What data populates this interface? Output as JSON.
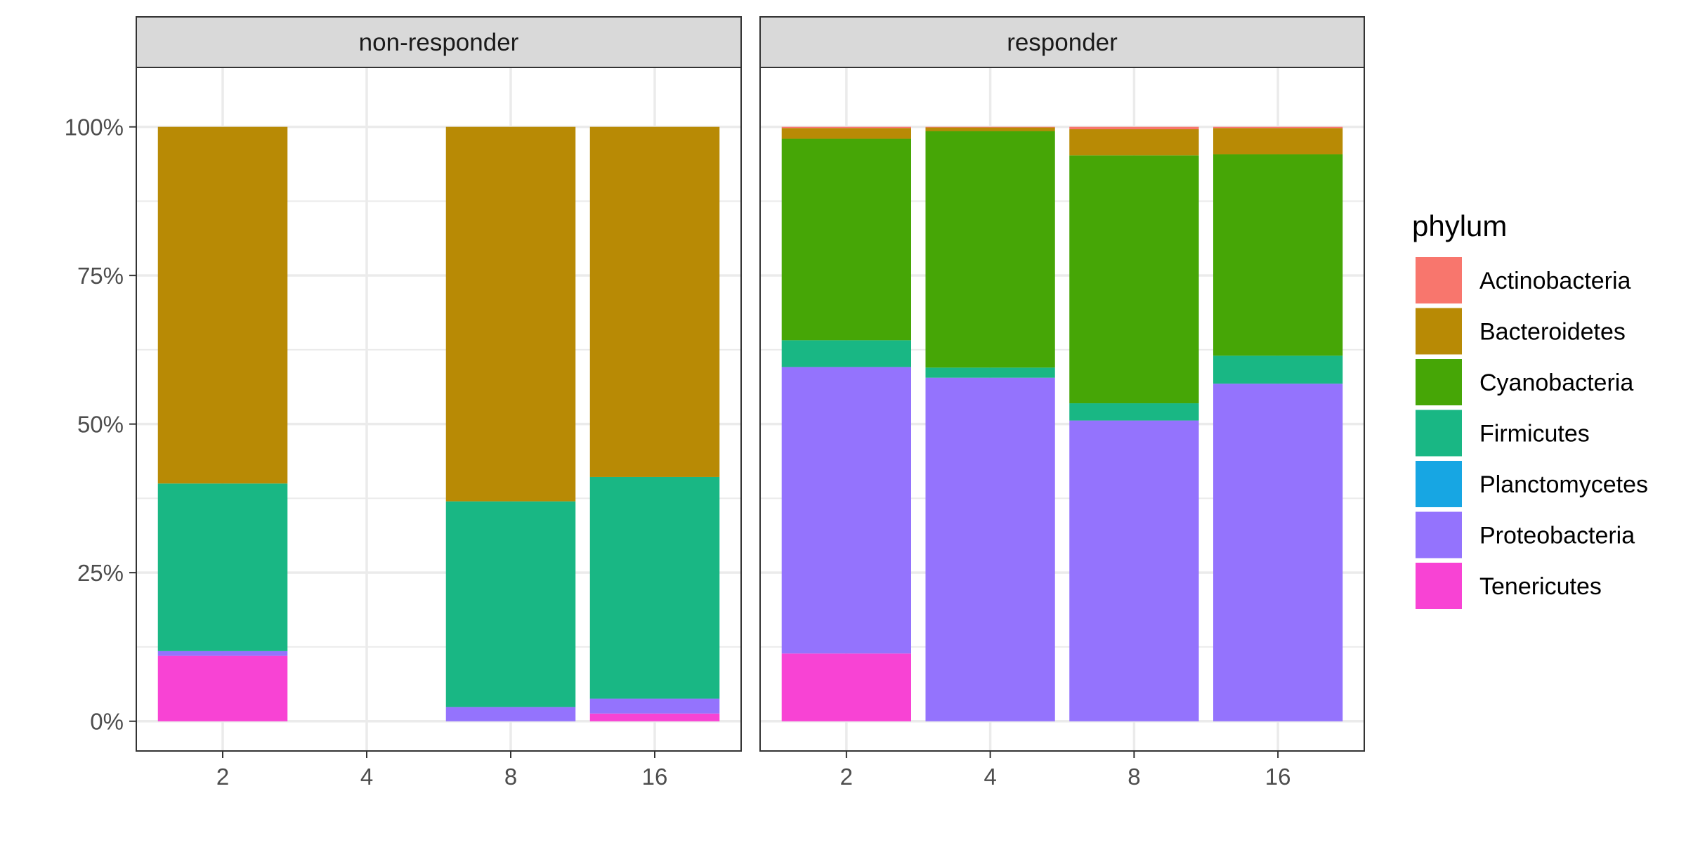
{
  "chart_data": {
    "type": "bar",
    "stacked": true,
    "facets": [
      {
        "label": "non-responder",
        "categories": [
          "2",
          "4",
          "8",
          "16"
        ],
        "series": [
          {
            "name": "Tenericutes",
            "values": [
              11.0,
              0,
              0,
              1.3
            ]
          },
          {
            "name": "Proteobacteria",
            "values": [
              0.8,
              0,
              2.4,
              2.5
            ]
          },
          {
            "name": "Planctomycetes",
            "values": [
              0,
              0,
              0,
              0
            ]
          },
          {
            "name": "Firmicutes",
            "values": [
              28.2,
              0,
              34.6,
              37.3
            ]
          },
          {
            "name": "Cyanobacteria",
            "values": [
              0,
              0,
              0,
              0
            ]
          },
          {
            "name": "Bacteroidetes",
            "values": [
              60.0,
              0,
              63.0,
              58.9
            ]
          },
          {
            "name": "Actinobacteria",
            "values": [
              0,
              0,
              0,
              0
            ]
          }
        ]
      },
      {
        "label": "responder",
        "categories": [
          "2",
          "4",
          "8",
          "16"
        ],
        "series": [
          {
            "name": "Tenericutes",
            "values": [
              11.4,
              0,
              0,
              0
            ]
          },
          {
            "name": "Proteobacteria",
            "values": [
              48.2,
              57.8,
              50.6,
              56.8
            ]
          },
          {
            "name": "Planctomycetes",
            "values": [
              0,
              0,
              0,
              0
            ]
          },
          {
            "name": "Firmicutes",
            "values": [
              4.5,
              1.7,
              2.9,
              4.7
            ]
          },
          {
            "name": "Cyanobacteria",
            "values": [
              33.9,
              39.8,
              41.7,
              33.9
            ]
          },
          {
            "name": "Bacteroidetes",
            "values": [
              1.8,
              0.6,
              4.4,
              4.4
            ]
          },
          {
            "name": "Actinobacteria",
            "values": [
              0.2,
              0.1,
              0.4,
              0.2
            ]
          }
        ]
      }
    ],
    "y_tick_labels": [
      "0%",
      "25%",
      "50%",
      "75%",
      "100%"
    ],
    "y_ticks": [
      0,
      25,
      50,
      75,
      100
    ],
    "ylim": [
      -5,
      110
    ],
    "xlabel": "",
    "ylabel": "",
    "grid": true,
    "legend": {
      "title": "phylum",
      "placement": "right",
      "entries": [
        {
          "name": "Actinobacteria",
          "color": "#F8766D"
        },
        {
          "name": "Bacteroidetes",
          "color": "#B88A05"
        },
        {
          "name": "Cyanobacteria",
          "color": "#46A606"
        },
        {
          "name": "Firmicutes",
          "color": "#19B784"
        },
        {
          "name": "Planctomycetes",
          "color": "#17A6E3"
        },
        {
          "name": "Proteobacteria",
          "color": "#9473FD"
        },
        {
          "name": "Tenericutes",
          "color": "#F843D4"
        }
      ]
    }
  }
}
